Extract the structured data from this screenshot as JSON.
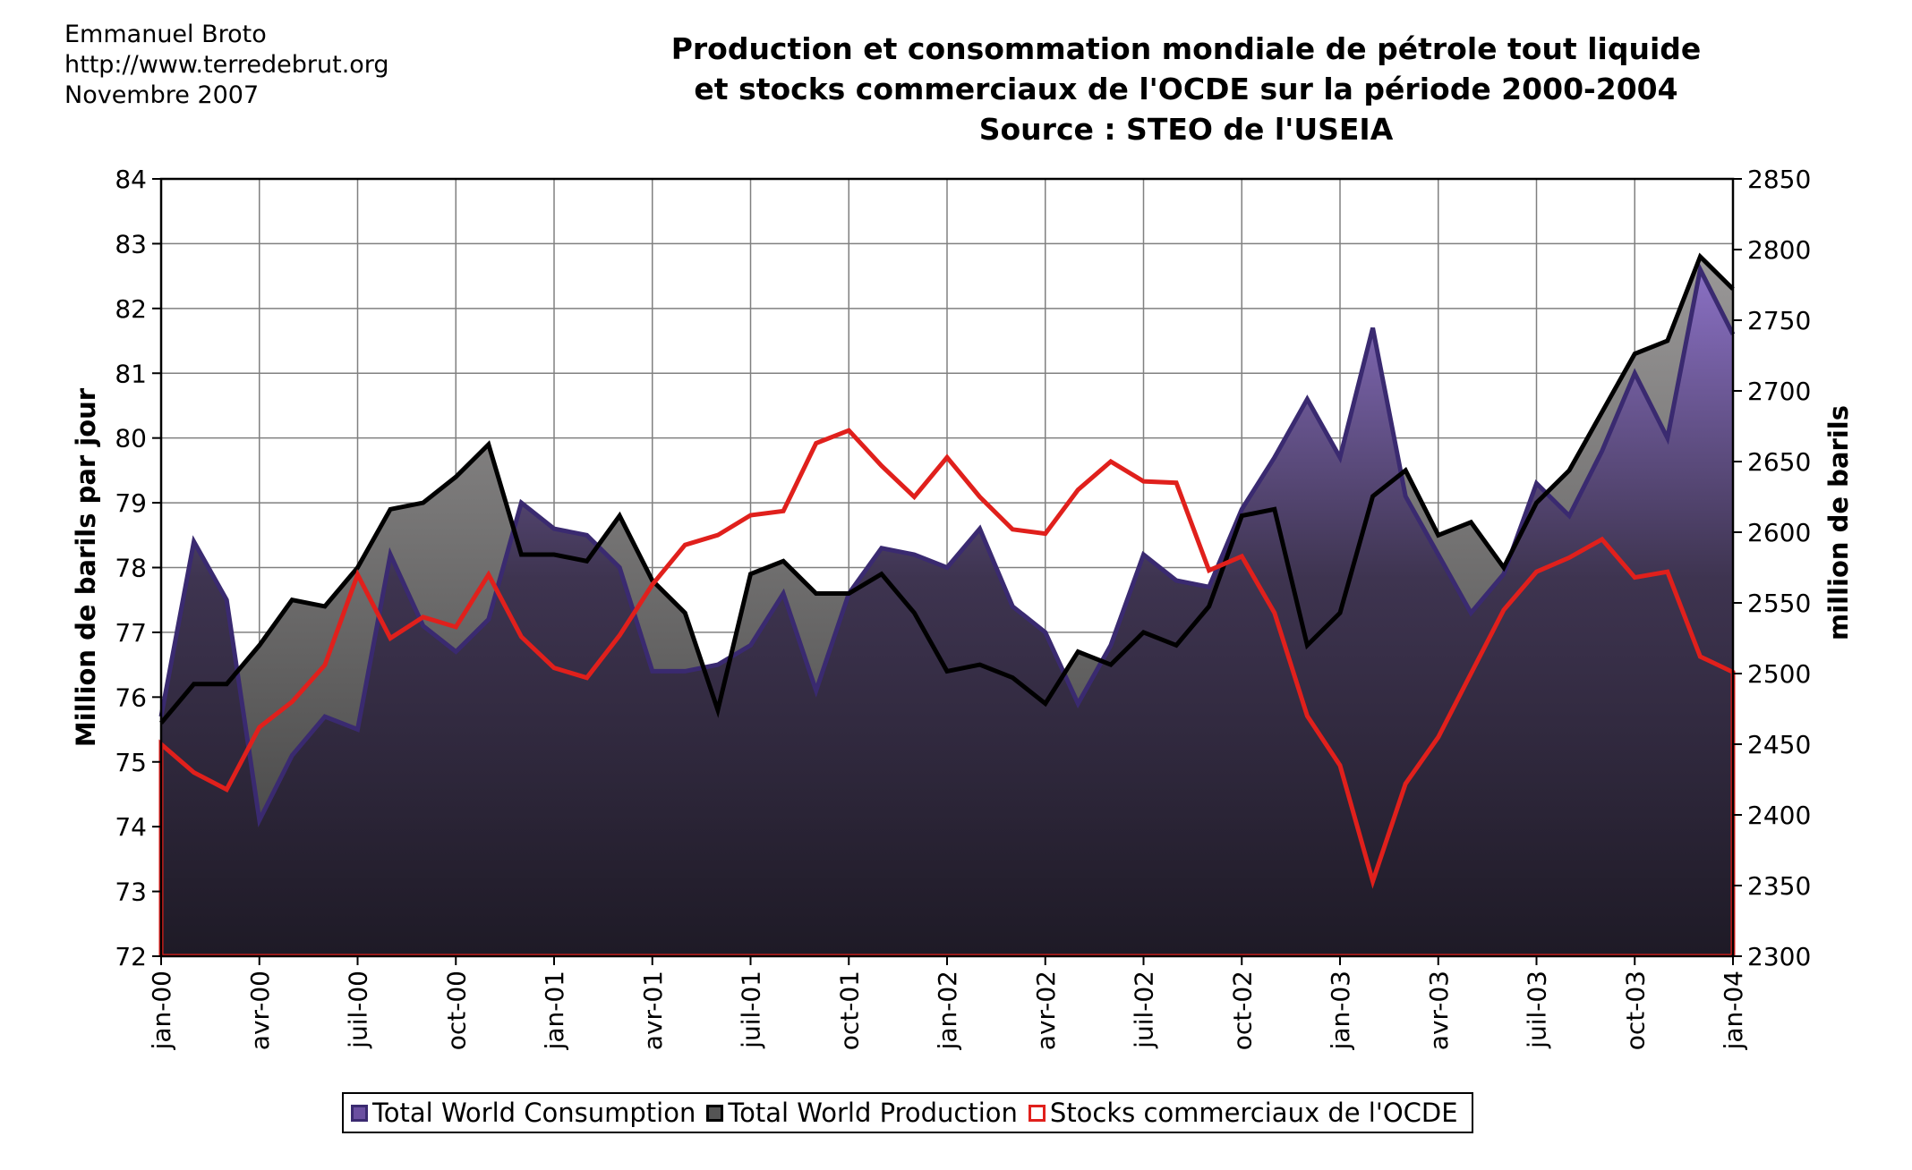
{
  "header": {
    "author_lines": [
      "Emmanuel Broto",
      "http://www.terredebrut.org",
      "Novembre 2007"
    ],
    "title_lines": [
      "Production et consommation mondiale de pétrole tout liquide",
      "et stocks commerciaux de l'OCDE sur la période 2000-2004",
      "Source : STEO de l'USEIA"
    ]
  },
  "legend": {
    "consumption": "Total World Consumption",
    "production": "Total World Production",
    "stocks": "Stocks commerciaux de l'OCDE"
  },
  "colors": {
    "consumption_line": "#3a2a70",
    "consumption_fill_top": "#8a70c4",
    "consumption_fill_bottom": "#1e1a26",
    "production_line": "#000000",
    "production_fill_top": "#9a9898",
    "stocks_line": "#e0201c"
  },
  "chart_data": {
    "type": "area",
    "ylabel": "Million de barils par jour",
    "y2label": "million de barils",
    "ylim": [
      72,
      84
    ],
    "y2lim": [
      2300,
      2850
    ],
    "yticks": [
      72,
      73,
      74,
      75,
      76,
      77,
      78,
      79,
      80,
      81,
      82,
      83,
      84
    ],
    "y2ticks": [
      2300,
      2350,
      2400,
      2450,
      2500,
      2550,
      2600,
      2650,
      2700,
      2750,
      2800,
      2850
    ],
    "xtick_labels": [
      "jan-00",
      "avr-00",
      "juil-00",
      "oct-00",
      "jan-01",
      "avr-01",
      "juil-01",
      "oct-01",
      "jan-02",
      "avr-02",
      "juil-02",
      "oct-02",
      "jan-03",
      "avr-03",
      "juil-03",
      "oct-03",
      "jan-04"
    ],
    "grid": true,
    "legend_position": "bottom",
    "x": [
      "2000-01",
      "2000-02",
      "2000-03",
      "2000-04",
      "2000-05",
      "2000-06",
      "2000-07",
      "2000-08",
      "2000-09",
      "2000-10",
      "2000-11",
      "2000-12",
      "2001-01",
      "2001-02",
      "2001-03",
      "2001-04",
      "2001-05",
      "2001-06",
      "2001-07",
      "2001-08",
      "2001-09",
      "2001-10",
      "2001-11",
      "2001-12",
      "2002-01",
      "2002-02",
      "2002-03",
      "2002-04",
      "2002-05",
      "2002-06",
      "2002-07",
      "2002-08",
      "2002-09",
      "2002-10",
      "2002-11",
      "2002-12",
      "2003-01",
      "2003-02",
      "2003-03",
      "2003-04",
      "2003-05",
      "2003-06",
      "2003-07",
      "2003-08",
      "2003-09",
      "2003-10",
      "2003-11",
      "2003-12",
      "2004-01"
    ],
    "series": [
      {
        "name": "Total World Consumption",
        "axis": "left",
        "values": [
          75.7,
          78.4,
          77.5,
          74.1,
          75.1,
          75.7,
          75.5,
          78.2,
          77.1,
          76.7,
          77.2,
          79.0,
          78.6,
          78.5,
          78.0,
          76.4,
          76.4,
          76.5,
          76.8,
          77.6,
          76.1,
          77.6,
          78.3,
          78.2,
          78.0,
          78.6,
          77.4,
          77.0,
          75.9,
          76.8,
          78.2,
          77.8,
          77.7,
          78.9,
          79.7,
          80.6,
          79.7,
          81.7,
          79.1,
          78.2,
          77.3,
          77.9,
          79.3,
          78.8,
          79.8,
          81.0,
          80.0,
          82.6,
          81.6
        ]
      },
      {
        "name": "Total World Production",
        "axis": "left",
        "values": [
          75.6,
          76.2,
          76.2,
          76.8,
          77.5,
          77.4,
          78.0,
          78.9,
          79.0,
          79.4,
          79.9,
          78.2,
          78.2,
          78.1,
          78.8,
          77.8,
          77.3,
          75.8,
          77.9,
          78.1,
          77.6,
          77.6,
          77.9,
          77.3,
          76.4,
          76.5,
          76.3,
          75.9,
          76.7,
          76.5,
          77.0,
          76.8,
          77.4,
          78.8,
          78.9,
          76.8,
          77.3,
          79.1,
          79.5,
          78.5,
          78.7,
          78.0,
          79.0,
          79.5,
          80.4,
          81.3,
          81.5,
          82.8,
          82.3
        ]
      },
      {
        "name": "Stocks commerciaux de l'OCDE",
        "axis": "right",
        "values": [
          2450,
          2430,
          2418,
          2462,
          2480,
          2506,
          2570,
          2525,
          2540,
          2533,
          2570,
          2526,
          2504,
          2497,
          2527,
          2563,
          2591,
          2598,
          2612,
          2615,
          2663,
          2672,
          2647,
          2625,
          2653,
          2625,
          2602,
          2599,
          2630,
          2650,
          2636,
          2635,
          2573,
          2583,
          2543,
          2470,
          2435,
          2353,
          2422,
          2455,
          2500,
          2545,
          2572,
          2582,
          2595,
          2568,
          2572,
          2512,
          2501
        ]
      }
    ]
  }
}
